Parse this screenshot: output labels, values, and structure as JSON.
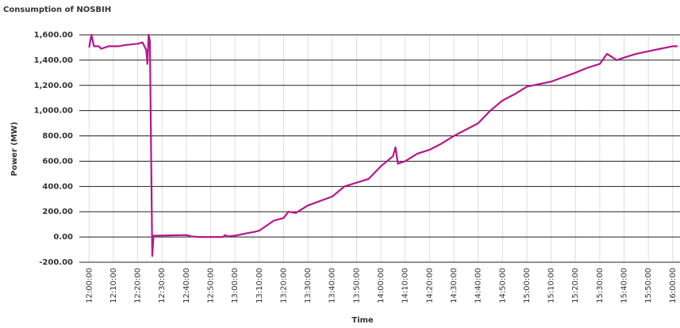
{
  "chart_data": {
    "type": "line",
    "title": "Consumption of NOSBIH",
    "x_label": "Time",
    "y_label": "Power (MW)",
    "x": [
      "12:00:00",
      "12:01:00",
      "12:02:00",
      "12:04:00",
      "12:05:00",
      "12:08:00",
      "12:12:00",
      "12:15:00",
      "12:20:00",
      "12:22:00",
      "12:23:30",
      "12:24:00",
      "12:24:30",
      "12:25:00",
      "12:26:00",
      "12:26:30",
      "12:40:00",
      "12:42:00",
      "12:45:00",
      "12:55:00",
      "12:56:00",
      "12:57:00",
      "13:00:00",
      "13:05:00",
      "13:08:00",
      "13:10:00",
      "13:16:00",
      "13:20:00",
      "13:22:00",
      "13:25:00",
      "13:30:00",
      "13:40:00",
      "13:45:00",
      "13:50:00",
      "13:55:00",
      "14:00:00",
      "14:05:00",
      "14:06:00",
      "14:07:00",
      "14:10:00",
      "14:15:00",
      "14:20:00",
      "14:25:00",
      "14:30:00",
      "14:35:00",
      "14:40:00",
      "14:45:00",
      "14:50:00",
      "14:55:00",
      "15:00:00",
      "15:10:00",
      "15:20:00",
      "15:25:00",
      "15:30:00",
      "15:33:00",
      "15:37:00",
      "15:40:00",
      "15:45:00",
      "15:50:00",
      "15:55:00",
      "16:00:00",
      "16:02:00"
    ],
    "series": [
      {
        "name": "Power (MW)",
        "color": "#b5178c",
        "values": [
          1500,
          1600,
          1510,
          1510,
          1490,
          1510,
          1510,
          1520,
          1530,
          1540,
          1480,
          1370,
          1600,
          1550,
          -150,
          10,
          15,
          5,
          0,
          0,
          15,
          5,
          10,
          30,
          40,
          50,
          130,
          150,
          200,
          190,
          250,
          320,
          400,
          430,
          460,
          560,
          640,
          710,
          580,
          600,
          660,
          690,
          740,
          800,
          850,
          900,
          1000,
          1080,
          1130,
          1190,
          1230,
          1300,
          1340,
          1370,
          1450,
          1400,
          1420,
          1450,
          1470,
          1490,
          1510,
          1510
        ]
      }
    ],
    "xlim": [
      "11:56:00",
      "16:03:00"
    ],
    "xticks": [
      "12:00:00",
      "12:10:00",
      "12:20:00",
      "12:30:00",
      "12:40:00",
      "12:50:00",
      "13:00:00",
      "13:10:00",
      "13:20:00",
      "13:30:00",
      "13:40:00",
      "13:50:00",
      "14:00:00",
      "14:10:00",
      "14:20:00",
      "14:30:00",
      "14:40:00",
      "14:50:00",
      "15:00:00",
      "15:10:00",
      "15:20:00",
      "15:30:00",
      "15:40:00",
      "15:50:00",
      "16:00:00"
    ],
    "ylim": [
      -200,
      1600
    ],
    "yticks": [
      {
        "value": -200,
        "label": "-200.00"
      },
      {
        "value": 0,
        "label": "0.00"
      },
      {
        "value": 200,
        "label": "200.00"
      },
      {
        "value": 400,
        "label": "400.00"
      },
      {
        "value": 600,
        "label": "600.00"
      },
      {
        "value": 800,
        "label": "800.00"
      },
      {
        "value": 1000,
        "label": "1,000.00"
      },
      {
        "value": 1200,
        "label": "1,200.00"
      },
      {
        "value": 1400,
        "label": "1,400.00"
      },
      {
        "value": 1600,
        "label": "1,600.00"
      }
    ],
    "grid": true
  }
}
